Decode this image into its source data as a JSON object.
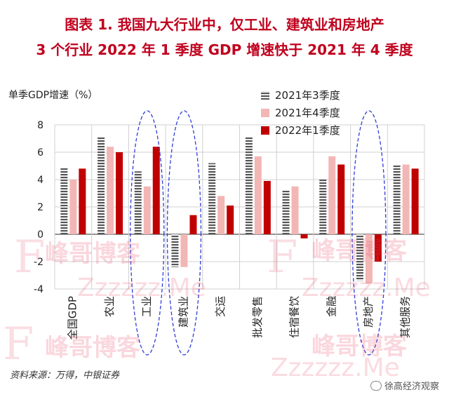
{
  "header": {
    "title_line1": "图表 1.  我国九大行业中，仅工业、建筑业和房地产",
    "title_line2": "3 个行业 2022 年 1 季度 GDP 增速快于 2021 年 4 季度"
  },
  "source": "资料来源：万得，中银证券",
  "credit": "徐高经济观察",
  "watermark": {
    "brand": "峰哥博客",
    "url": "Zzzzzz.Me",
    "letter": "F"
  },
  "colors": {
    "title": "#c0001d",
    "q3_2021": "#555555",
    "q4_2021": "#f2b7b5",
    "q1_2022": "#c00000",
    "ellipse": "#2f3ddb"
  },
  "chart_data": {
    "type": "bar",
    "ylabel": "单季GDP增速（%）",
    "ylim": [
      -4,
      8
    ],
    "yticks": [
      -4,
      -2,
      0,
      2,
      4,
      6,
      8
    ],
    "grid": true,
    "legend_position": "top-right",
    "categories": [
      "全国GDP",
      "农业",
      "工业",
      "建筑业",
      "交运",
      "批发零售",
      "住宿餐饮",
      "金融",
      "房地产",
      "其他服务"
    ],
    "highlighted_categories": [
      "工业",
      "建筑业",
      "房地产"
    ],
    "series": [
      {
        "name": "2021年3季度",
        "pattern": "striped",
        "values": [
          4.9,
          7.1,
          4.6,
          -2.4,
          5.2,
          7.1,
          3.2,
          4.0,
          -3.4,
          5.1
        ]
      },
      {
        "name": "2021年4季度",
        "pattern": "solid",
        "values": [
          4.0,
          6.4,
          3.5,
          -2.4,
          2.8,
          5.7,
          3.5,
          5.7,
          -3.6,
          5.1
        ]
      },
      {
        "name": "2022年1季度",
        "pattern": "solid",
        "values": [
          4.8,
          6.0,
          6.4,
          1.4,
          2.1,
          3.9,
          -0.3,
          5.1,
          -2.0,
          4.8
        ]
      }
    ]
  }
}
